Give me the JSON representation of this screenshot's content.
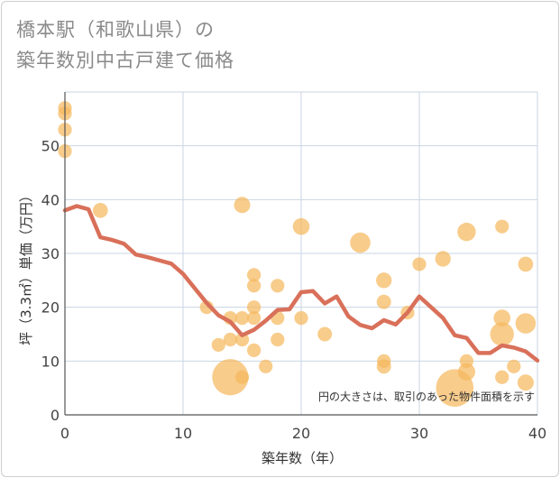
{
  "title_line1": "橋本駅（和歌山県）の",
  "title_line2": "築年数別中古戸建て価格",
  "chart_data": {
    "type": "scatter",
    "xlabel": "築年数（年）",
    "ylabel": "坪（3.3㎡）単価（万円）",
    "xlim": [
      0,
      40
    ],
    "ylim": [
      0,
      60
    ],
    "x_ticks": [
      "0",
      "10",
      "20",
      "30",
      "40"
    ],
    "y_ticks": [
      "0",
      "10",
      "20",
      "30",
      "40",
      "50"
    ],
    "grid": true,
    "note": "円の大きさは、取引のあった物件面積を示す",
    "colors": {
      "bubble": "#f5b95e",
      "line": "#d9705a",
      "grid": "#c9d6e3"
    },
    "bubbles": [
      {
        "x": 0,
        "y": 57,
        "size": 1
      },
      {
        "x": 0,
        "y": 56,
        "size": 1
      },
      {
        "x": 0,
        "y": 53,
        "size": 1
      },
      {
        "x": 0,
        "y": 49,
        "size": 1
      },
      {
        "x": 3,
        "y": 38,
        "size": 1.2
      },
      {
        "x": 12,
        "y": 20,
        "size": 1
      },
      {
        "x": 13,
        "y": 13,
        "size": 1
      },
      {
        "x": 14,
        "y": 18,
        "size": 1
      },
      {
        "x": 14,
        "y": 14,
        "size": 1
      },
      {
        "x": 14,
        "y": 7,
        "size": 7
      },
      {
        "x": 15,
        "y": 39,
        "size": 1.4
      },
      {
        "x": 15,
        "y": 18,
        "size": 1
      },
      {
        "x": 15,
        "y": 14,
        "size": 1
      },
      {
        "x": 15,
        "y": 7,
        "size": 1
      },
      {
        "x": 16,
        "y": 26,
        "size": 1
      },
      {
        "x": 16,
        "y": 24,
        "size": 1
      },
      {
        "x": 16,
        "y": 20,
        "size": 1
      },
      {
        "x": 16,
        "y": 18,
        "size": 1
      },
      {
        "x": 16,
        "y": 12,
        "size": 1
      },
      {
        "x": 17,
        "y": 9,
        "size": 1
      },
      {
        "x": 18,
        "y": 24,
        "size": 1
      },
      {
        "x": 18,
        "y": 18,
        "size": 1
      },
      {
        "x": 18,
        "y": 14,
        "size": 1
      },
      {
        "x": 20,
        "y": 35,
        "size": 1.5
      },
      {
        "x": 20,
        "y": 18,
        "size": 1
      },
      {
        "x": 22,
        "y": 15,
        "size": 1.1
      },
      {
        "x": 25,
        "y": 32,
        "size": 2.2
      },
      {
        "x": 27,
        "y": 25,
        "size": 1.3
      },
      {
        "x": 27,
        "y": 21,
        "size": 1.1
      },
      {
        "x": 27,
        "y": 10,
        "size": 1
      },
      {
        "x": 27,
        "y": 9,
        "size": 1.1
      },
      {
        "x": 29,
        "y": 19,
        "size": 1
      },
      {
        "x": 30,
        "y": 28,
        "size": 1
      },
      {
        "x": 32,
        "y": 29,
        "size": 1.3
      },
      {
        "x": 33,
        "y": 5,
        "size": 7.5
      },
      {
        "x": 34,
        "y": 34,
        "size": 1.8
      },
      {
        "x": 34,
        "y": 10,
        "size": 1
      },
      {
        "x": 34,
        "y": 8,
        "size": 1.6
      },
      {
        "x": 37,
        "y": 35,
        "size": 1
      },
      {
        "x": 37,
        "y": 18,
        "size": 1.5
      },
      {
        "x": 37,
        "y": 15,
        "size": 3
      },
      {
        "x": 37,
        "y": 7,
        "size": 1
      },
      {
        "x": 38,
        "y": 9,
        "size": 1
      },
      {
        "x": 39,
        "y": 28,
        "size": 1.2
      },
      {
        "x": 39,
        "y": 17,
        "size": 2.2
      },
      {
        "x": 39,
        "y": 6,
        "size": 1.4
      }
    ],
    "trend": {
      "x": [
        0,
        1,
        2,
        3,
        4,
        5,
        6,
        7,
        8,
        9,
        10,
        11,
        12,
        13,
        14,
        15,
        16,
        17,
        18,
        19,
        20,
        21,
        22,
        23,
        24,
        25,
        26,
        27,
        28,
        29,
        30,
        31,
        32,
        33,
        34,
        35,
        36,
        37,
        38,
        39,
        40
      ],
      "y": [
        38,
        38.8,
        38.2,
        33,
        32.5,
        31.8,
        29.8,
        29.3,
        28.7,
        28.1,
        26.2,
        23.5,
        20.8,
        18.5,
        17.3,
        14.8,
        15.8,
        17.5,
        19.5,
        19.6,
        22.8,
        23,
        20.7,
        22,
        18.3,
        16.7,
        16.1,
        17.6,
        16.8,
        19,
        22,
        20,
        18,
        14.8,
        14.3,
        11.5,
        11.5,
        12.9,
        12.5,
        11.8,
        10.1
      ]
    }
  }
}
